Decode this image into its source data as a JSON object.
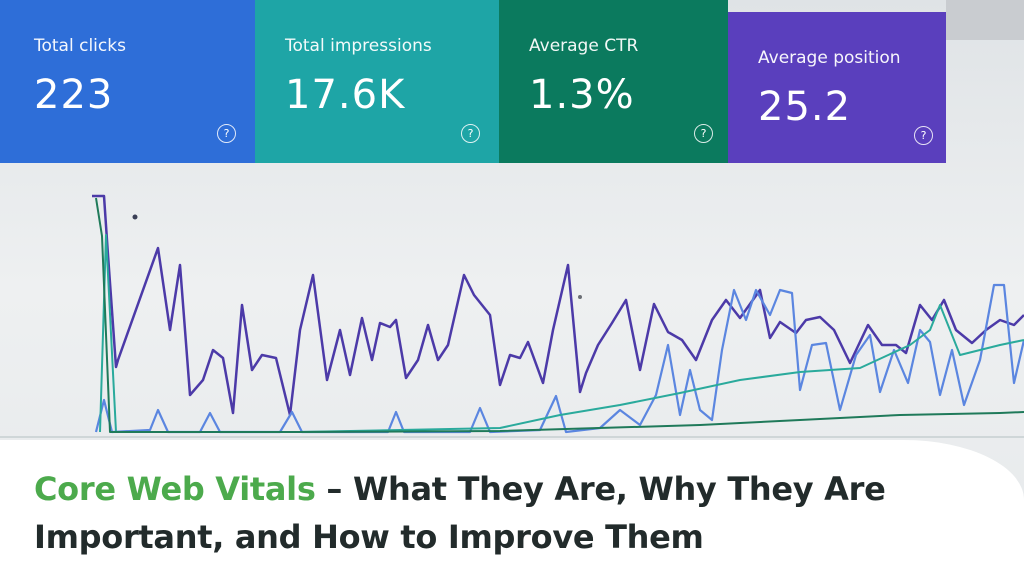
{
  "metrics": [
    {
      "id": "clicks",
      "label": "Total clicks",
      "value": "223",
      "color": "#2e6ed8"
    },
    {
      "id": "impressions",
      "label": "Total impressions",
      "value": "17.6K",
      "color": "#1ea5a6"
    },
    {
      "id": "ctr",
      "label": "Average CTR",
      "value": "1.3%",
      "color": "#0b7a5e"
    },
    {
      "id": "position",
      "label": "Average position",
      "value": "25.2",
      "color": "#5a3fbd"
    }
  ],
  "help_glyph": "?",
  "title": {
    "highlight": "Core Web Vitals",
    "rest": " – What They Are, Why They Are Important, and How to Improve Them",
    "highlight_color": "#4caa4c",
    "text_color": "#222b2b"
  }
}
